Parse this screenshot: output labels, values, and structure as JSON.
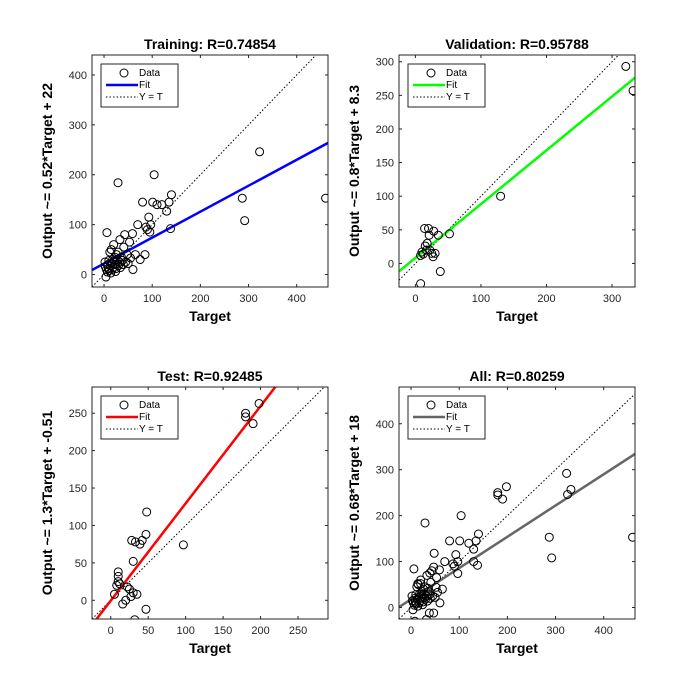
{
  "chart_data": [
    {
      "type": "scatter",
      "title": "Training: R=0.74854",
      "xlabel": "Target",
      "ylabel": "Output ~= 0.52*Target + 22",
      "xlim": [
        -25,
        465
      ],
      "ylim": [
        -25,
        440
      ],
      "xticks": [
        0,
        100,
        200,
        300,
        400
      ],
      "yticks": [
        0,
        100,
        200,
        300,
        400
      ],
      "fit": {
        "slope": 0.52,
        "intercept": 22,
        "color": "#0000ff"
      },
      "legend": [
        "Data",
        "Fit",
        "Y = T"
      ],
      "points": [
        [
          460,
          153
        ],
        [
          323,
          246
        ],
        [
          287,
          153
        ],
        [
          292,
          108
        ],
        [
          104,
          200
        ],
        [
          29,
          184
        ],
        [
          140,
          160
        ],
        [
          135,
          145
        ],
        [
          130,
          127
        ],
        [
          138,
          92
        ],
        [
          120,
          140
        ],
        [
          101,
          145
        ],
        [
          97,
          100
        ],
        [
          90,
          90
        ],
        [
          93,
          115
        ],
        [
          87,
          95
        ],
        [
          80,
          145
        ],
        [
          70,
          100
        ],
        [
          59,
          82
        ],
        [
          53,
          65
        ],
        [
          43,
          80
        ],
        [
          41,
          55
        ],
        [
          33,
          70
        ],
        [
          29,
          45
        ],
        [
          26,
          40
        ],
        [
          22,
          35
        ],
        [
          20,
          60
        ],
        [
          18,
          30
        ],
        [
          15,
          50
        ],
        [
          12,
          45
        ],
        [
          10,
          28
        ],
        [
          8,
          20
        ],
        [
          6,
          84
        ],
        [
          5,
          10
        ],
        [
          4,
          -5
        ],
        [
          3,
          15
        ],
        [
          2,
          25
        ],
        [
          7,
          5
        ],
        [
          9,
          12
        ],
        [
          11,
          8
        ],
        [
          13,
          18
        ],
        [
          14,
          3
        ],
        [
          16,
          22
        ],
        [
          17,
          10
        ],
        [
          19,
          14
        ],
        [
          21,
          28
        ],
        [
          23,
          20
        ],
        [
          24,
          6
        ],
        [
          25,
          12
        ],
        [
          27,
          30
        ],
        [
          28,
          22
        ],
        [
          30,
          18
        ],
        [
          32,
          25
        ],
        [
          34,
          14
        ],
        [
          36,
          35
        ],
        [
          38,
          28
        ],
        [
          40,
          20
        ],
        [
          45,
          25
        ],
        [
          48,
          40
        ],
        [
          50,
          22
        ],
        [
          55,
          33
        ],
        [
          60,
          10
        ],
        [
          65,
          40
        ],
        [
          75,
          30
        ],
        [
          85,
          40
        ],
        [
          95,
          85
        ],
        [
          110,
          140
        ]
      ]
    },
    {
      "type": "scatter",
      "title": "Validation: R=0.95788",
      "xlabel": "Target",
      "ylabel": "Output ~= 0.8*Target + 8.3",
      "xlim": [
        -25,
        335
      ],
      "ylim": [
        -35,
        310
      ],
      "xticks": [
        0,
        100,
        200,
        300
      ],
      "yticks": [
        0,
        50,
        100,
        150,
        200,
        250,
        300
      ],
      "fit": {
        "slope": 0.8,
        "intercept": 8.3,
        "color": "#00ff00"
      },
      "legend": [
        "Data",
        "Fit",
        "Y = T"
      ],
      "points": [
        [
          321,
          293
        ],
        [
          332,
          257
        ],
        [
          130,
          100
        ],
        [
          14,
          52
        ],
        [
          20,
          52
        ],
        [
          28,
          48
        ],
        [
          35,
          42
        ],
        [
          21,
          42
        ],
        [
          52,
          44
        ],
        [
          18,
          30
        ],
        [
          15,
          26
        ],
        [
          22,
          20
        ],
        [
          25,
          15
        ],
        [
          12,
          14
        ],
        [
          8,
          12
        ],
        [
          10,
          17
        ],
        [
          30,
          15
        ],
        [
          38,
          -12
        ],
        [
          8,
          -30
        ],
        [
          27,
          10
        ],
        [
          17,
          20
        ]
      ]
    },
    {
      "type": "scatter",
      "title": "Test: R=0.92485",
      "xlabel": "Target",
      "ylabel": "Output ~= 1.3*Target + -0.51",
      "xlim": [
        -25,
        290
      ],
      "ylim": [
        -25,
        285
      ],
      "xticks": [
        0,
        50,
        100,
        150,
        200,
        250
      ],
      "yticks": [
        0,
        50,
        100,
        150,
        200,
        250
      ],
      "fit": {
        "slope": 1.3,
        "intercept": -0.51,
        "color": "#ff0000"
      },
      "legend": [
        "Data",
        "Fit",
        "Y = T"
      ],
      "points": [
        [
          198,
          263
        ],
        [
          180,
          250
        ],
        [
          180,
          245
        ],
        [
          190,
          236
        ],
        [
          97,
          74
        ],
        [
          48,
          118
        ],
        [
          47,
          88
        ],
        [
          39,
          75
        ],
        [
          28,
          80
        ],
        [
          33,
          78
        ],
        [
          42,
          80
        ],
        [
          30,
          52
        ],
        [
          10,
          38
        ],
        [
          10,
          32
        ],
        [
          10,
          25
        ],
        [
          12,
          22
        ],
        [
          22,
          18
        ],
        [
          25,
          15
        ],
        [
          30,
          10
        ],
        [
          27,
          5
        ],
        [
          35,
          8
        ],
        [
          20,
          0
        ],
        [
          16,
          -5
        ],
        [
          47,
          -12
        ],
        [
          32,
          -26
        ],
        [
          5,
          8
        ],
        [
          8,
          20
        ]
      ]
    },
    {
      "type": "scatter",
      "title": "All: R=0.80259",
      "xlabel": "Target",
      "ylabel": "Output ~= 0.68*Target + 18",
      "xlim": [
        -25,
        465
      ],
      "ylim": [
        -25,
        480
      ],
      "xticks": [
        0,
        100,
        200,
        300,
        400
      ],
      "yticks": [
        0,
        100,
        200,
        300,
        400
      ],
      "fit": {
        "slope": 0.68,
        "intercept": 18,
        "color": "#666666"
      },
      "legend": [
        "Data",
        "Fit",
        "Y = T"
      ],
      "points": [
        [
          460,
          153
        ],
        [
          323,
          292
        ],
        [
          332,
          257
        ],
        [
          325,
          246
        ],
        [
          287,
          153
        ],
        [
          292,
          108
        ],
        [
          198,
          263
        ],
        [
          180,
          250
        ],
        [
          180,
          245
        ],
        [
          190,
          236
        ],
        [
          130,
          100
        ],
        [
          104,
          200
        ],
        [
          29,
          184
        ],
        [
          140,
          160
        ],
        [
          135,
          145
        ],
        [
          130,
          127
        ],
        [
          138,
          92
        ],
        [
          120,
          140
        ],
        [
          101,
          145
        ],
        [
          97,
          100
        ],
        [
          97,
          74
        ],
        [
          90,
          90
        ],
        [
          93,
          115
        ],
        [
          87,
          95
        ],
        [
          80,
          145
        ],
        [
          70,
          100
        ],
        [
          59,
          82
        ],
        [
          53,
          65
        ],
        [
          48,
          118
        ],
        [
          47,
          88
        ],
        [
          43,
          80
        ],
        [
          41,
          55
        ],
        [
          39,
          75
        ],
        [
          33,
          70
        ],
        [
          29,
          45
        ],
        [
          26,
          40
        ],
        [
          22,
          35
        ],
        [
          20,
          60
        ],
        [
          18,
          30
        ],
        [
          15,
          50
        ],
        [
          12,
          45
        ],
        [
          10,
          28
        ],
        [
          8,
          20
        ],
        [
          6,
          84
        ],
        [
          5,
          10
        ],
        [
          4,
          -5
        ],
        [
          3,
          15
        ],
        [
          2,
          25
        ],
        [
          7,
          5
        ],
        [
          9,
          12
        ],
        [
          11,
          8
        ],
        [
          13,
          18
        ],
        [
          14,
          3
        ],
        [
          16,
          22
        ],
        [
          17,
          10
        ],
        [
          19,
          14
        ],
        [
          21,
          28
        ],
        [
          23,
          20
        ],
        [
          24,
          6
        ],
        [
          25,
          12
        ],
        [
          27,
          30
        ],
        [
          28,
          22
        ],
        [
          30,
          18
        ],
        [
          32,
          25
        ],
        [
          34,
          14
        ],
        [
          36,
          35
        ],
        [
          38,
          28
        ],
        [
          40,
          20
        ],
        [
          45,
          25
        ],
        [
          50,
          22
        ],
        [
          55,
          33
        ],
        [
          60,
          10
        ],
        [
          65,
          40
        ],
        [
          47,
          -12
        ],
        [
          32,
          -26
        ],
        [
          8,
          -30
        ],
        [
          38,
          -12
        ],
        [
          14,
          52
        ],
        [
          20,
          52
        ],
        [
          35,
          42
        ],
        [
          52,
          44
        ]
      ]
    }
  ]
}
